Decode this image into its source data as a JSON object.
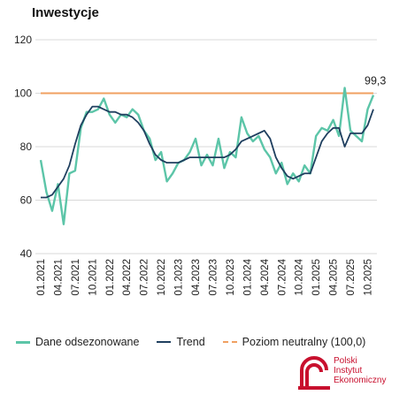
{
  "colors": {
    "raw": "#5cc5a8",
    "trend": "#1f3f5f",
    "neutral": "#f0a061",
    "grid": "#d9d9d9",
    "brand": "#c8102e"
  },
  "chart_data": {
    "type": "line",
    "title": "Inwestycje",
    "xlabel": "",
    "ylabel": "",
    "ylim": [
      40,
      120
    ],
    "yticks": [
      40,
      60,
      80,
      100,
      120
    ],
    "grid": true,
    "legend_position": "bottom",
    "x": [
      "01.2021",
      "02.2021",
      "03.2021",
      "04.2021",
      "05.2021",
      "06.2021",
      "07.2021",
      "08.2021",
      "09.2021",
      "10.2021",
      "11.2021",
      "12.2021",
      "01.2022",
      "02.2022",
      "03.2022",
      "04.2022",
      "05.2022",
      "06.2022",
      "07.2022",
      "08.2022",
      "09.2022",
      "10.2022",
      "11.2022",
      "12.2022",
      "01.2023",
      "02.2023",
      "03.2023",
      "04.2023",
      "05.2023",
      "06.2023",
      "07.2023",
      "08.2023",
      "09.2023",
      "10.2023",
      "11.2023",
      "12.2023",
      "01.2024",
      "02.2024",
      "03.2024",
      "04.2024",
      "05.2024",
      "06.2024",
      "07.2024",
      "08.2024",
      "09.2024",
      "10.2024",
      "11.2024",
      "12.2024",
      "01.2025",
      "02.2025",
      "03.2025",
      "04.2025",
      "05.2025",
      "06.2025",
      "07.2025",
      "08.2025",
      "09.2025",
      "10.2025",
      "11.2025"
    ],
    "xtick_labels": [
      "01.2021",
      "04.2021",
      "07.2021",
      "10.2021",
      "01.2022",
      "04.2022",
      "07.2022",
      "10.2022",
      "01.2023",
      "04.2023",
      "07.2023",
      "10.2023",
      "01.2024",
      "04.2024",
      "07.2024",
      "10.2024",
      "01.2025",
      "04.2025",
      "07.2025",
      "10.2025"
    ],
    "series": [
      {
        "name": "Dane odsezonowane",
        "values": [
          75,
          63,
          56,
          66,
          51,
          70,
          71,
          87,
          93,
          93,
          94,
          98,
          92,
          89,
          92,
          91,
          94,
          92,
          86,
          83,
          75,
          78,
          67,
          70,
          74,
          75,
          78,
          83,
          73,
          77,
          73,
          83,
          72,
          78,
          76,
          91,
          85,
          82,
          84,
          79,
          76,
          70,
          74,
          66,
          70,
          67,
          73,
          70,
          84,
          87,
          86,
          90,
          84,
          102,
          86,
          84,
          82,
          94,
          99.3
        ]
      },
      {
        "name": "Trend",
        "values": [
          61,
          61,
          62,
          65,
          68,
          73,
          81,
          88,
          92,
          95,
          95,
          94,
          93,
          93,
          92,
          92,
          91,
          89,
          86,
          81,
          77,
          75,
          74,
          74,
          74,
          75,
          76,
          76,
          76,
          76,
          76,
          76,
          76,
          77,
          79,
          82,
          83,
          84,
          85,
          86,
          83,
          76,
          72,
          69,
          68,
          69,
          70,
          70,
          76,
          82,
          85,
          87,
          87,
          80,
          85,
          85,
          85,
          88,
          94
        ]
      },
      {
        "name": "Poziom neutralny (100,0)",
        "constant": 100
      }
    ],
    "annotations": [
      {
        "text": "99,3",
        "x": "11.2025",
        "y": 99.3
      }
    ]
  },
  "legend": {
    "raw": "Dane odsezonowane",
    "trend": "Trend",
    "neutral": "Poziom neutralny (100,0)"
  },
  "logo": {
    "line1": "Polski",
    "line2": "Instytut",
    "line3": "Ekonomiczny"
  }
}
